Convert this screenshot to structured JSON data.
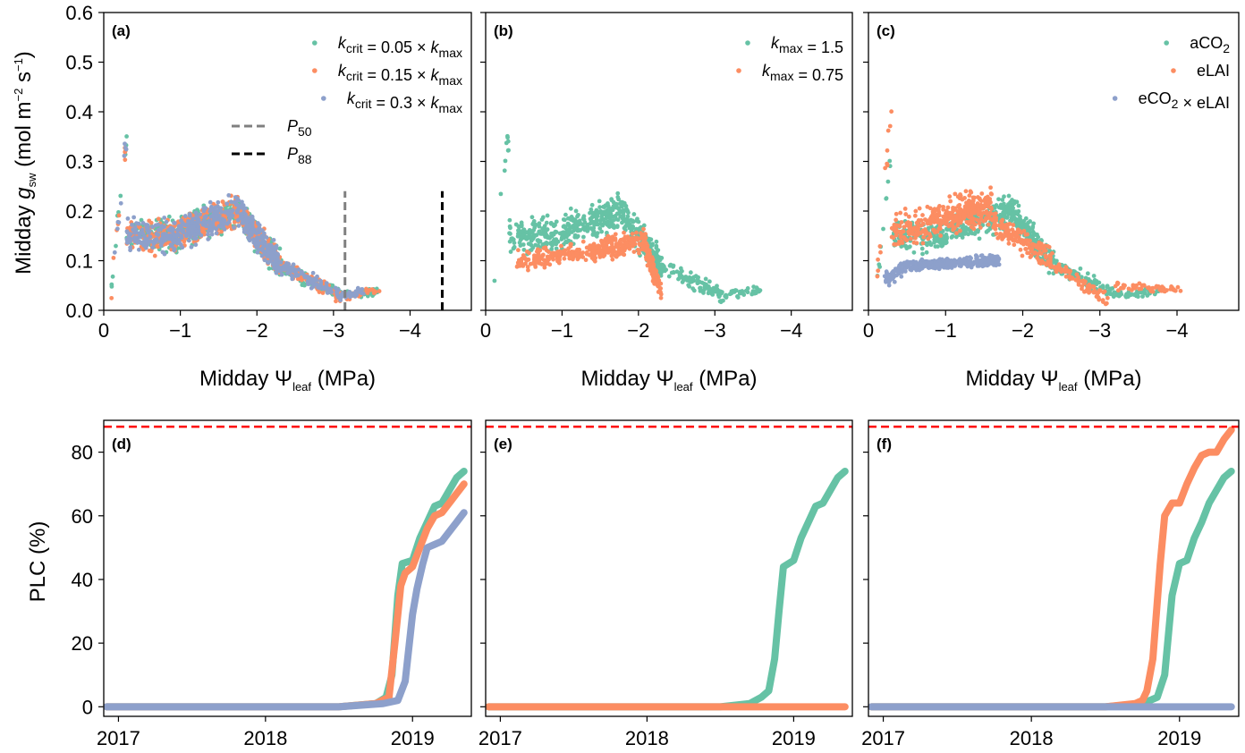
{
  "colors": {
    "green": "#66c2a5",
    "orange": "#fc8d62",
    "blue": "#8da0cb",
    "p50": "#808080",
    "p88": "#000000",
    "threshold": "#ff0000"
  },
  "labels": {
    "ylabel_top": "Midday g_sw (mol m⁻² s⁻¹)",
    "ylabel_top_main": "Midday ",
    "ylabel_top_var": "g",
    "ylabel_top_sub": "sw",
    "ylabel_top_units": " (mol m",
    "ylabel_top_units2": "−2",
    "ylabel_top_units3": " s",
    "ylabel_top_units4": "−1",
    "ylabel_top_units5": ")",
    "xlabel_top_main": "Midday Ψ",
    "xlabel_top_sub": "leaf",
    "xlabel_top_units": " (MPa)",
    "ylabel_bottom": "PLC (%)"
  },
  "chart_data": [
    {
      "panel": "(a)",
      "type": "scatter",
      "xlabel": "Midday Ψleaf (MPa)",
      "ylabel": "Midday gsw (mol m−2 s−1)",
      "xlim": [
        0,
        -4.8
      ],
      "ylim": [
        0,
        0.6
      ],
      "xticks": [
        0,
        -1,
        -2,
        -3,
        -4
      ],
      "yticks": [
        0.0,
        0.1,
        0.2,
        0.3,
        0.4,
        0.5,
        0.6
      ],
      "legend_position": "top-right",
      "series": [
        {
          "name": "kcrit = 0.05 × kmax",
          "color": "green"
        },
        {
          "name": "kcrit = 0.15 × kmax",
          "color": "orange"
        },
        {
          "name": "kcrit = 0.3 × kmax",
          "color": "blue"
        }
      ],
      "legend_series": [
        {
          "pre": "k",
          "sub": "crit",
          "mid": " = 0.05 × ",
          "pre2": "k",
          "sub2": "max"
        },
        {
          "pre": "k",
          "sub": "crit",
          "mid": " = 0.15 × ",
          "pre2": "k",
          "sub2": "max"
        },
        {
          "pre": "k",
          "sub": "crit",
          "mid": " = 0.3 × ",
          "pre2": "k",
          "sub2": "max"
        }
      ],
      "vlines": [
        {
          "name": "P50",
          "x": -3.15,
          "ymax": 0.24,
          "color": "p50"
        },
        {
          "name": "P88",
          "x": -4.42,
          "ymax": 0.24,
          "color": "p88"
        }
      ]
    },
    {
      "panel": "(b)",
      "type": "scatter",
      "xlabel": "Midday Ψleaf (MPa)",
      "xlim": [
        0,
        -4.8
      ],
      "ylim": [
        0,
        0.6
      ],
      "xticks": [
        0,
        -1,
        -2,
        -3,
        -4
      ],
      "legend_position": "top-right",
      "series": [
        {
          "name": "kmax = 1.5",
          "color": "green"
        },
        {
          "name": "kmax = 0.75",
          "color": "orange"
        }
      ],
      "legend_series": [
        {
          "pre": "k",
          "sub": "max",
          "mid": " = 1.5"
        },
        {
          "pre": "k",
          "sub": "max",
          "mid": " = 0.75"
        }
      ]
    },
    {
      "panel": "(c)",
      "type": "scatter",
      "xlabel": "Midday Ψleaf (MPa)",
      "xlim": [
        0,
        -4.8
      ],
      "ylim": [
        0,
        0.6
      ],
      "xticks": [
        0,
        -1,
        -2,
        -3,
        -4
      ],
      "legend_position": "top-right",
      "series": [
        {
          "name": "aCO2",
          "color": "green"
        },
        {
          "name": "eLAI",
          "color": "orange"
        },
        {
          "name": "eCO2 × eLAI",
          "color": "blue"
        }
      ],
      "legend_series": [
        {
          "pre": "aCO",
          "sub": "2",
          "mid": ""
        },
        {
          "pre": "eLAI",
          "sub": "",
          "mid": ""
        },
        {
          "pre": "eCO",
          "sub": "2",
          "mid": " × eLAI"
        }
      ]
    },
    {
      "panel": "(d)",
      "type": "line",
      "ylabel": "PLC (%)",
      "xlim": [
        2016.9,
        2019.4
      ],
      "ylim": [
        -3,
        90
      ],
      "xticks": [
        2017,
        2018,
        2019
      ],
      "xticklabels": [
        "2017",
        "2018",
        "2019"
      ],
      "yticks": [
        0,
        20,
        40,
        60,
        80
      ],
      "hline": 88,
      "series": [
        {
          "name": "kcrit = 0.05 × kmax",
          "color": "green",
          "x": [
            2016.92,
            2018.5,
            2018.75,
            2018.82,
            2018.86,
            2018.9,
            2018.93,
            2019.0,
            2019.05,
            2019.1,
            2019.15,
            2019.2,
            2019.25,
            2019.3,
            2019.35
          ],
          "y": [
            0,
            0,
            1,
            3,
            10,
            35,
            45,
            46,
            53,
            58,
            63,
            64,
            68,
            72,
            74
          ]
        },
        {
          "name": "kcrit = 0.15 × kmax",
          "color": "orange",
          "x": [
            2016.92,
            2018.5,
            2018.75,
            2018.84,
            2018.88,
            2018.92,
            2018.95,
            2019.0,
            2019.05,
            2019.1,
            2019.15,
            2019.2,
            2019.25,
            2019.3,
            2019.35
          ],
          "y": [
            0,
            0,
            1,
            3,
            20,
            38,
            42,
            44,
            50,
            56,
            60,
            61,
            64,
            67,
            70
          ]
        },
        {
          "name": "kcrit = 0.3 × kmax",
          "color": "blue",
          "x": [
            2016.92,
            2018.5,
            2018.8,
            2018.9,
            2018.95,
            2019.0,
            2019.03,
            2019.07,
            2019.1,
            2019.15,
            2019.2,
            2019.25,
            2019.3,
            2019.35
          ],
          "y": [
            0,
            0,
            1,
            2,
            8,
            29,
            37,
            45,
            50,
            51,
            52,
            55,
            58,
            61
          ]
        }
      ]
    },
    {
      "panel": "(e)",
      "type": "line",
      "xlim": [
        2016.9,
        2019.4
      ],
      "ylim": [
        -3,
        90
      ],
      "xticks": [
        2017,
        2018,
        2019
      ],
      "xticklabels": [
        "2017",
        "2018",
        "2019"
      ],
      "hline": 88,
      "series": [
        {
          "name": "kmax = 1.5",
          "color": "green",
          "x": [
            2016.92,
            2018.5,
            2018.7,
            2018.78,
            2018.83,
            2018.87,
            2018.9,
            2018.93,
            2019.0,
            2019.05,
            2019.1,
            2019.15,
            2019.2,
            2019.25,
            2019.3,
            2019.35
          ],
          "y": [
            0,
            0,
            1,
            3,
            5,
            15,
            30,
            44,
            46,
            53,
            58,
            63,
            64,
            68,
            72,
            74
          ]
        },
        {
          "name": "kmax = 0.75",
          "color": "orange",
          "x": [
            2016.92,
            2019.35
          ],
          "y": [
            0,
            0
          ]
        }
      ]
    },
    {
      "panel": "(f)",
      "type": "line",
      "xlim": [
        2016.9,
        2019.4
      ],
      "ylim": [
        -3,
        90
      ],
      "xticks": [
        2017,
        2018,
        2019
      ],
      "xticklabels": [
        "2017",
        "2018",
        "2019"
      ],
      "hline": 88,
      "series": [
        {
          "name": "aCO2",
          "color": "green",
          "x": [
            2016.92,
            2018.5,
            2018.75,
            2018.85,
            2018.9,
            2018.95,
            2019.0,
            2019.05,
            2019.1,
            2019.15,
            2019.2,
            2019.25,
            2019.3,
            2019.35
          ],
          "y": [
            0,
            0,
            1,
            3,
            10,
            35,
            45,
            46,
            53,
            58,
            64,
            68,
            72,
            74
          ]
        },
        {
          "name": "eLAI",
          "color": "orange",
          "x": [
            2016.92,
            2018.5,
            2018.7,
            2018.75,
            2018.78,
            2018.82,
            2018.87,
            2018.9,
            2018.95,
            2019.0,
            2019.05,
            2019.1,
            2019.15,
            2019.2,
            2019.25,
            2019.3,
            2019.35
          ],
          "y": [
            0,
            0,
            1,
            2,
            5,
            15,
            45,
            60,
            64,
            64,
            70,
            75,
            79,
            80,
            80,
            84,
            87
          ]
        },
        {
          "name": "eCO2 × eLAI",
          "color": "blue",
          "x": [
            2016.92,
            2019.35
          ],
          "y": [
            0,
            0
          ]
        }
      ]
    }
  ]
}
